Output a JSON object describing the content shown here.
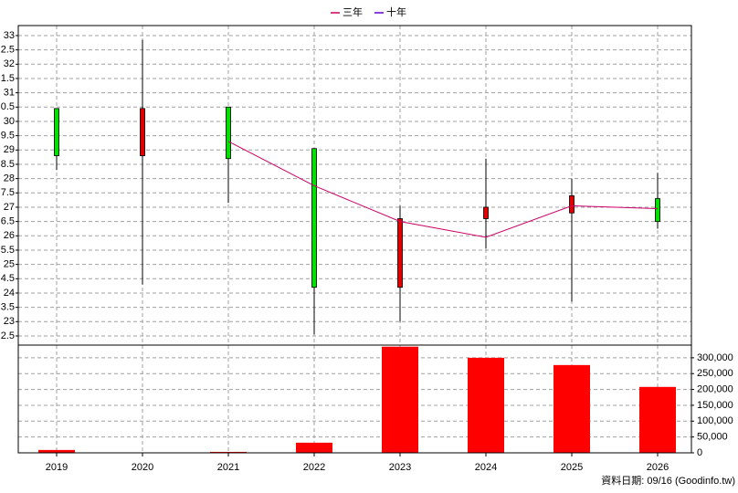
{
  "chart_data": [
    {
      "type": "candlestick",
      "open": [
        28.8,
        30.45,
        28.7,
        24.2,
        26.6,
        27.0,
        27.4,
        26.5
      ],
      "high": [
        30.45,
        32.85,
        30.5,
        29.05,
        27.05,
        28.7,
        28.0,
        28.2
      ],
      "low": [
        28.3,
        24.3,
        27.15,
        22.55,
        23.0,
        25.55,
        23.7,
        26.25
      ],
      "close": [
        30.45,
        28.8,
        30.5,
        29.05,
        24.2,
        26.6,
        26.8,
        27.3
      ],
      "up_color": "#00e000",
      "down_color": "#e00000",
      "series": [
        {
          "name": "三年",
          "color": "#cc0066",
          "values": [
            null,
            null,
            29.3,
            27.75,
            26.5,
            25.95,
            27.05,
            26.95
          ]
        },
        {
          "name": "十年",
          "color": "#6600cc",
          "values": [
            null,
            null,
            null,
            null,
            null,
            null,
            null,
            null
          ]
        }
      ],
      "ylim": [
        22.18,
        33.35
      ],
      "yticks": [
        {
          "value": 22.5,
          "label": "2.5"
        },
        23,
        {
          "value": 23.5,
          "label": "3.5"
        },
        24,
        {
          "value": 24.5,
          "label": "4.5"
        },
        25,
        {
          "value": 25.5,
          "label": "5.5"
        },
        26,
        {
          "value": 26.5,
          "label": "6.5"
        },
        27,
        {
          "value": 27.5,
          "label": "7.5"
        },
        28,
        {
          "value": 28.5,
          "label": "8.5"
        },
        29,
        {
          "value": 29.5,
          "label": "9.5"
        },
        30,
        {
          "value": 30.5,
          "label": "0.5"
        },
        31,
        {
          "value": 31.5,
          "label": "1.5"
        },
        32,
        {
          "value": 32.5,
          "label": "2.5"
        },
        33
      ],
      "grid": true
    },
    {
      "type": "bar",
      "categories": [
        "2019",
        "2020",
        "2021",
        "2022",
        "2023",
        "2024",
        "2025",
        "2026"
      ],
      "values": [
        9000,
        1000,
        3000,
        32000,
        335000,
        300000,
        277000,
        208000
      ],
      "color": "#ff0000",
      "ylim": [
        0,
        340000
      ],
      "yticks": [
        0,
        {
          "value": 50000,
          "label": "50,000"
        },
        {
          "value": 100000,
          "label": "100,000"
        },
        {
          "value": 150000,
          "label": "150,000"
        },
        {
          "value": 200000,
          "label": "200,000"
        },
        {
          "value": 250000,
          "label": "250,000"
        },
        {
          "value": 300000,
          "label": "300,000"
        }
      ],
      "grid": true
    }
  ],
  "footer": "資料日期: 09/16 (Goodinfo.tw)"
}
